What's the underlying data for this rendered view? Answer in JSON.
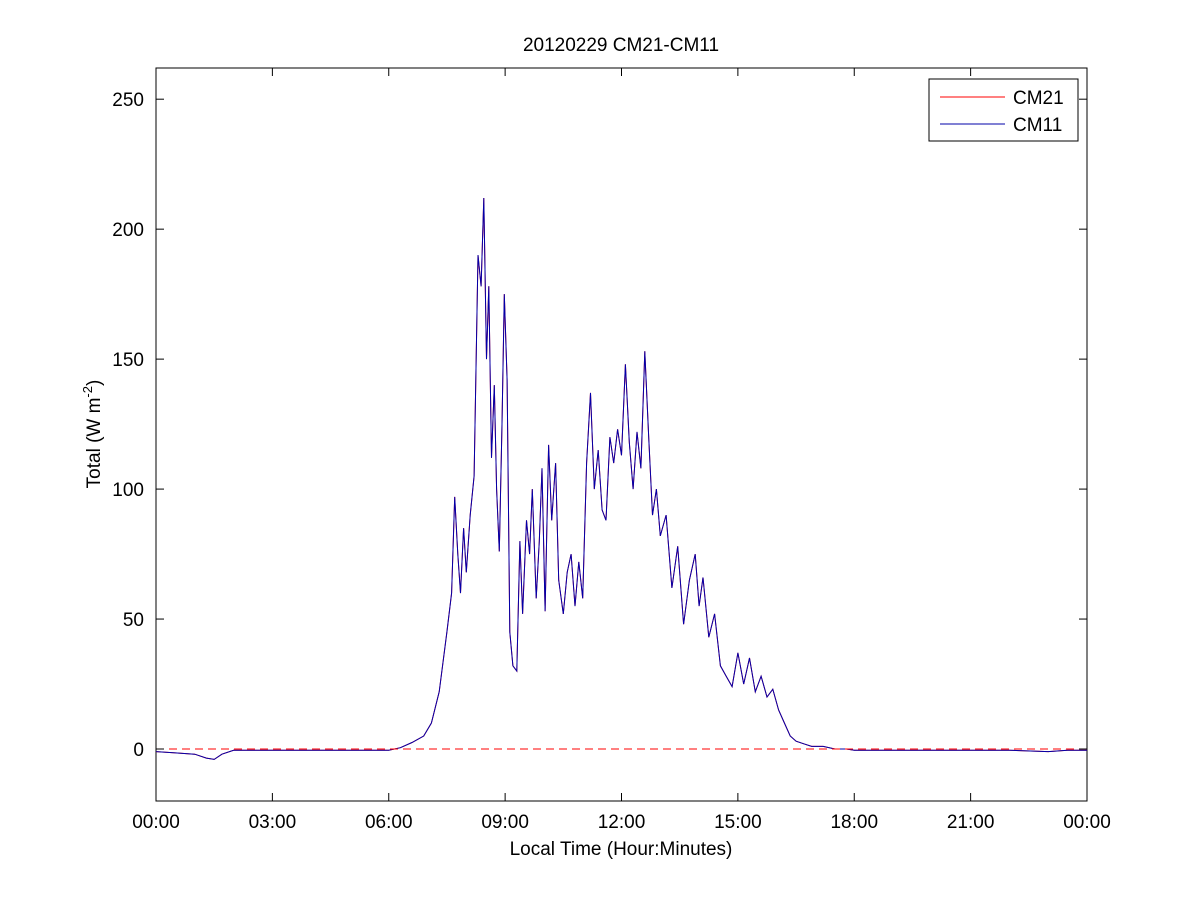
{
  "chart_data": {
    "type": "line",
    "title": "20120229 CM21-CM11",
    "xlabel": "Local Time (Hour:Minutes)",
    "ylabel_main": "Total (W m",
    "ylabel_sup": "-2",
    "ylabel_close": ")",
    "xlim": [
      0,
      24
    ],
    "ylim": [
      -20,
      262
    ],
    "x_ticks": [
      0,
      3,
      6,
      9,
      12,
      15,
      18,
      21,
      24
    ],
    "x_tick_labels": [
      "00:00",
      "03:00",
      "06:00",
      "09:00",
      "12:00",
      "15:00",
      "18:00",
      "21:00",
      "00:00"
    ],
    "y_ticks": [
      0,
      50,
      100,
      150,
      200,
      250
    ],
    "y_tick_labels": [
      "0",
      "50",
      "100",
      "150",
      "200",
      "250"
    ],
    "grid": false,
    "legend_position": "top-right",
    "zero_reference_line": {
      "y": 0,
      "color": "#ff0000",
      "style": "dashed"
    },
    "series": [
      {
        "name": "CM21",
        "color": "#ff0000",
        "x": [
          0,
          0.5,
          1.0,
          1.3,
          1.5,
          1.7,
          2.0,
          3.0,
          4.0,
          5.0,
          6.0,
          6.3,
          6.6,
          6.9,
          7.1,
          7.3,
          7.5,
          7.62,
          7.7,
          7.78,
          7.85,
          7.93,
          8.0,
          8.1,
          8.2,
          8.3,
          8.38,
          8.45,
          8.52,
          8.58,
          8.65,
          8.72,
          8.78,
          8.85,
          8.92,
          8.98,
          9.05,
          9.12,
          9.2,
          9.3,
          9.38,
          9.45,
          9.55,
          9.63,
          9.7,
          9.8,
          9.88,
          9.95,
          10.03,
          10.12,
          10.2,
          10.3,
          10.38,
          10.5,
          10.6,
          10.7,
          10.8,
          10.9,
          11.0,
          11.1,
          11.2,
          11.3,
          11.4,
          11.5,
          11.6,
          11.7,
          11.8,
          11.9,
          12.0,
          12.1,
          12.2,
          12.3,
          12.4,
          12.5,
          12.6,
          12.7,
          12.8,
          12.9,
          13.0,
          13.15,
          13.3,
          13.45,
          13.6,
          13.75,
          13.9,
          14.0,
          14.1,
          14.25,
          14.4,
          14.55,
          14.7,
          14.85,
          15.0,
          15.15,
          15.3,
          15.45,
          15.6,
          15.75,
          15.9,
          16.05,
          16.2,
          16.35,
          16.5,
          16.7,
          16.9,
          17.2,
          17.5,
          17.8,
          18.0,
          19.0,
          20.0,
          21.0,
          22.0,
          23.0,
          23.5,
          24.0
        ],
        "y": [
          -1,
          -1.5,
          -2,
          -3.5,
          -4,
          -2,
          -0.5,
          -0.5,
          -0.5,
          -0.5,
          -0.5,
          0.5,
          2.5,
          5,
          10,
          22,
          45,
          60,
          97,
          75,
          60,
          85,
          68,
          90,
          105,
          190,
          178,
          212,
          150,
          178,
          112,
          140,
          100,
          76,
          125,
          175,
          142,
          45,
          32,
          30,
          80,
          52,
          88,
          75,
          100,
          58,
          80,
          108,
          53,
          117,
          88,
          110,
          65,
          52,
          68,
          75,
          55,
          72,
          58,
          110,
          137,
          100,
          115,
          92,
          88,
          120,
          110,
          123,
          113,
          148,
          118,
          100,
          122,
          108,
          153,
          120,
          90,
          100,
          82,
          90,
          62,
          78,
          48,
          65,
          75,
          55,
          66,
          43,
          52,
          32,
          28,
          24,
          37,
          25,
          35,
          22,
          28,
          20,
          23,
          15,
          10,
          5,
          3,
          2,
          1,
          1,
          0,
          0,
          -0.5,
          -0.5,
          -0.5,
          -0.5,
          -0.5,
          -1,
          -0.5,
          -0.5
        ]
      },
      {
        "name": "CM11",
        "color": "#0000aa",
        "x": [
          0,
          0.5,
          1.0,
          1.3,
          1.5,
          1.7,
          2.0,
          3.0,
          4.0,
          5.0,
          6.0,
          6.3,
          6.6,
          6.9,
          7.1,
          7.3,
          7.5,
          7.62,
          7.7,
          7.78,
          7.85,
          7.93,
          8.0,
          8.1,
          8.2,
          8.3,
          8.38,
          8.45,
          8.52,
          8.58,
          8.65,
          8.72,
          8.78,
          8.85,
          8.92,
          8.98,
          9.05,
          9.12,
          9.2,
          9.3,
          9.38,
          9.45,
          9.55,
          9.63,
          9.7,
          9.8,
          9.88,
          9.95,
          10.03,
          10.12,
          10.2,
          10.3,
          10.38,
          10.5,
          10.6,
          10.7,
          10.8,
          10.9,
          11.0,
          11.1,
          11.2,
          11.3,
          11.4,
          11.5,
          11.6,
          11.7,
          11.8,
          11.9,
          12.0,
          12.1,
          12.2,
          12.3,
          12.4,
          12.5,
          12.6,
          12.7,
          12.8,
          12.9,
          13.0,
          13.15,
          13.3,
          13.45,
          13.6,
          13.75,
          13.9,
          14.0,
          14.1,
          14.25,
          14.4,
          14.55,
          14.7,
          14.85,
          15.0,
          15.15,
          15.3,
          15.45,
          15.6,
          15.75,
          15.9,
          16.05,
          16.2,
          16.35,
          16.5,
          16.7,
          16.9,
          17.2,
          17.5,
          17.8,
          18.0,
          19.0,
          20.0,
          21.0,
          22.0,
          23.0,
          23.5,
          24.0
        ],
        "y": [
          -1,
          -1.5,
          -2,
          -3.5,
          -4,
          -2,
          -0.5,
          -0.5,
          -0.5,
          -0.5,
          -0.5,
          0.5,
          2.5,
          5,
          10,
          22,
          45,
          60,
          97,
          75,
          60,
          85,
          68,
          90,
          105,
          190,
          178,
          212,
          150,
          178,
          112,
          140,
          100,
          76,
          125,
          175,
          142,
          45,
          32,
          30,
          80,
          52,
          88,
          75,
          100,
          58,
          80,
          108,
          53,
          117,
          88,
          110,
          65,
          52,
          68,
          75,
          55,
          72,
          58,
          110,
          137,
          100,
          115,
          92,
          88,
          120,
          110,
          123,
          113,
          148,
          118,
          100,
          122,
          108,
          153,
          120,
          90,
          100,
          82,
          90,
          62,
          78,
          48,
          65,
          75,
          55,
          66,
          43,
          52,
          32,
          28,
          24,
          37,
          25,
          35,
          22,
          28,
          20,
          23,
          15,
          10,
          5,
          3,
          2,
          1,
          1,
          0,
          0,
          -0.5,
          -0.5,
          -0.5,
          -0.5,
          -0.5,
          -1,
          -0.5,
          -0.5
        ]
      }
    ]
  }
}
